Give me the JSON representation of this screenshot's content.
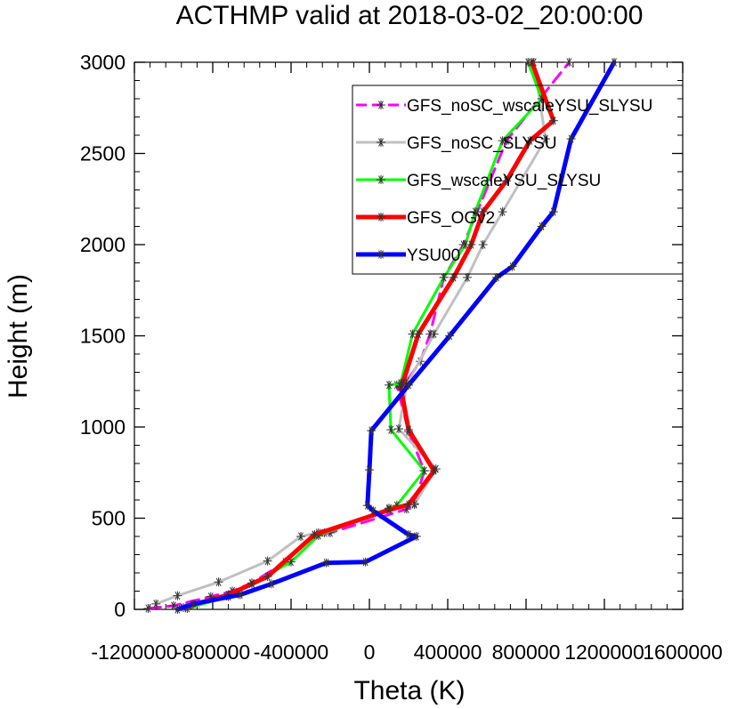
{
  "chart_data": {
    "type": "line",
    "title": "ACTHMP valid at 2018-03-02_20:00:00",
    "xlabel": "Theta (K)",
    "ylabel": "Height (m)",
    "xlim": [
      -1200000,
      1600000
    ],
    "ylim": [
      0,
      3000
    ],
    "xticks": [
      -1200000,
      -800000,
      -400000,
      0,
      400000,
      800000,
      1200000,
      1600000
    ],
    "xtick_labels": [
      "-1200000",
      "-800000",
      "-400000",
      "0",
      "400000",
      "800000",
      "1200000",
      "1600000"
    ],
    "yticks": [
      0,
      500,
      1000,
      1500,
      2000,
      2500,
      3000
    ],
    "ytick_labels": [
      "0",
      "500",
      "1000",
      "1500",
      "2000",
      "2500",
      "3000"
    ],
    "legend_position": "top-right",
    "grid": false,
    "series": [
      {
        "name": "GFS_noSC_wscaleYSU_SLYSU",
        "color": "#ff00ff",
        "dash": true,
        "width": 3,
        "x": [
          -1130000,
          -1000000,
          -810000,
          -700000,
          -600000,
          -430000,
          -280000,
          -200000,
          190000,
          230000,
          280000,
          200000,
          140000,
          190000,
          260000,
          310000,
          380000,
          480000,
          550000,
          700000,
          1020000
        ],
        "y": [
          5,
          20,
          70,
          100,
          145,
          260,
          405,
          420,
          550,
          580,
          760,
          975,
          1230,
          1250,
          1360,
          1510,
          1820,
          2000,
          2180,
          2570,
          3000
        ]
      },
      {
        "name": "GFS_noSC_SLYSU",
        "color": "#c0c0c0",
        "dash": false,
        "width": 3,
        "x": [
          -1090000,
          -980000,
          -770000,
          -520000,
          -350000,
          -260000,
          -230000,
          100000,
          230000,
          340000,
          150000,
          190000,
          330000,
          500000,
          580000,
          680000,
          900000,
          840000
        ],
        "y": [
          30,
          75,
          150,
          265,
          400,
          420,
          420,
          555,
          575,
          770,
          990,
          1230,
          1510,
          1820,
          2000,
          2180,
          2580,
          3000
        ]
      },
      {
        "name": "GFS_wscaleYSU_SLYSU",
        "color": "#00ff00",
        "dash": false,
        "width": 3,
        "x": [
          -930000,
          -720000,
          -400000,
          -260000,
          100000,
          140000,
          280000,
          110000,
          100000,
          160000,
          220000,
          380000,
          490000,
          540000,
          680000,
          880000,
          810000
        ],
        "y": [
          5,
          70,
          260,
          405,
          550,
          570,
          760,
          985,
          1230,
          1240,
          1510,
          1820,
          2000,
          2180,
          2570,
          2800,
          3000
        ]
      },
      {
        "name": "GFS_OGv2",
        "color": "#ff0000",
        "dash": false,
        "width": 5,
        "x": [
          -950000,
          -720000,
          -600000,
          -520000,
          -280000,
          100000,
          200000,
          330000,
          200000,
          160000,
          170000,
          250000,
          430000,
          520000,
          580000,
          700000,
          820000,
          940000,
          830000
        ],
        "y": [
          10,
          80,
          140,
          180,
          410,
          545,
          575,
          760,
          985,
          1220,
          1240,
          1510,
          1820,
          2000,
          2180,
          2350,
          2570,
          2680,
          3000
        ]
      },
      {
        "name": "YSU00",
        "color": "#0000ff",
        "dash": false,
        "width": 5,
        "x": [
          -980000,
          -900000,
          -660000,
          -500000,
          -220000,
          -20000,
          240000,
          200000,
          20000,
          -10000,
          0,
          10000,
          200000,
          410000,
          650000,
          730000,
          880000,
          940000,
          1030000,
          1250000
        ],
        "y": [
          0,
          30,
          80,
          140,
          255,
          260,
          400,
          410,
          540,
          570,
          765,
          980,
          1230,
          1500,
          1820,
          1880,
          2100,
          2180,
          2580,
          3000
        ]
      }
    ]
  }
}
